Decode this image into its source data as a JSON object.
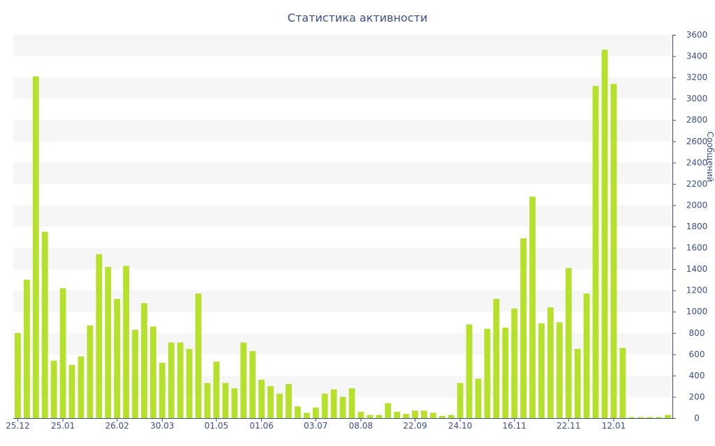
{
  "chart_data": {
    "type": "bar",
    "title": "Статистика активности",
    "ylabel": "Сообщений",
    "xlabel": "",
    "ylim": [
      0,
      3600
    ],
    "y_ticks": [
      0,
      200,
      400,
      600,
      800,
      1000,
      1200,
      1400,
      1600,
      1800,
      2000,
      2200,
      2400,
      2600,
      2800,
      3000,
      3200,
      3400,
      3600
    ],
    "x_tick_labels": [
      {
        "label": "25.12",
        "index": 0
      },
      {
        "label": "25.01",
        "index": 5
      },
      {
        "label": "26.02",
        "index": 11
      },
      {
        "label": "30.03",
        "index": 16
      },
      {
        "label": "01.05",
        "index": 22
      },
      {
        "label": "01.06",
        "index": 27
      },
      {
        "label": "03.07",
        "index": 33
      },
      {
        "label": "08.08",
        "index": 38
      },
      {
        "label": "22.09",
        "index": 44
      },
      {
        "label": "24.10",
        "index": 49
      },
      {
        "label": "16.11",
        "index": 55
      },
      {
        "label": "22.11",
        "index": 61
      },
      {
        "label": "12.01",
        "index": 66
      }
    ],
    "values": [
      800,
      1300,
      3210,
      1750,
      540,
      1220,
      500,
      580,
      870,
      1540,
      1420,
      1120,
      1430,
      830,
      1080,
      860,
      520,
      710,
      710,
      650,
      1170,
      330,
      530,
      330,
      280,
      710,
      630,
      360,
      300,
      230,
      320,
      110,
      50,
      100,
      230,
      270,
      200,
      280,
      60,
      30,
      30,
      140,
      60,
      40,
      70,
      70,
      50,
      20,
      30,
      330,
      880,
      370,
      840,
      1120,
      850,
      1030,
      1690,
      2080,
      890,
      1040,
      900,
      1410,
      650,
      1170,
      3120,
      3460,
      3140,
      660,
      10,
      10,
      10,
      10,
      30
    ],
    "grid": true,
    "colors": {
      "bar": "#b5e02c",
      "text": "#3b4d8f",
      "band": "#f6f6f6",
      "axis": "#3b4d8f"
    }
  }
}
